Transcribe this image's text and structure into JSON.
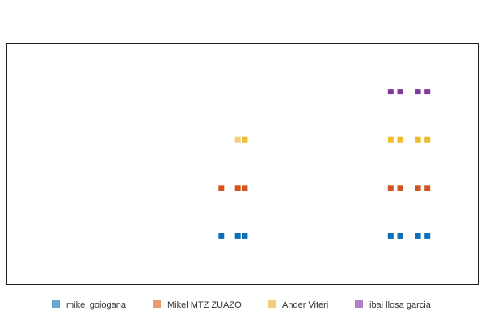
{
  "chart_data": {
    "type": "scatter",
    "title": "",
    "xlabel": "",
    "ylabel": "",
    "xlim": [
      0,
      1
    ],
    "ylim": [
      0,
      5
    ],
    "grid": false,
    "legend_position": "bottom",
    "series": [
      {
        "name": "mikel goiogana",
        "color": "#0b6fb8",
        "legend_color": "#6aa8d6",
        "points": [
          {
            "x": 0.455,
            "y": 1,
            "light": false
          },
          {
            "x": 0.49,
            "y": 1,
            "light": false
          },
          {
            "x": 0.505,
            "y": 1,
            "light": false
          },
          {
            "x": 0.815,
            "y": 1,
            "light": false
          },
          {
            "x": 0.835,
            "y": 1,
            "light": false
          },
          {
            "x": 0.873,
            "y": 1,
            "light": false
          },
          {
            "x": 0.893,
            "y": 1,
            "light": false
          }
        ]
      },
      {
        "name": "Mikel MTZ ZUAZO",
        "color": "#d4541f",
        "legend_color": "#e99a74",
        "points": [
          {
            "x": 0.455,
            "y": 2,
            "light": false
          },
          {
            "x": 0.49,
            "y": 2,
            "light": false
          },
          {
            "x": 0.505,
            "y": 2,
            "light": false
          },
          {
            "x": 0.815,
            "y": 2,
            "light": false
          },
          {
            "x": 0.835,
            "y": 2,
            "light": false
          },
          {
            "x": 0.873,
            "y": 2,
            "light": false
          },
          {
            "x": 0.893,
            "y": 2,
            "light": false
          }
        ]
      },
      {
        "name": "Ander Viteri",
        "color": "#f0bb2c",
        "legend_color": "#f5cc7a",
        "points": [
          {
            "x": 0.49,
            "y": 3,
            "light": true
          },
          {
            "x": 0.505,
            "y": 3,
            "light": false
          },
          {
            "x": 0.815,
            "y": 3,
            "light": false
          },
          {
            "x": 0.835,
            "y": 3,
            "light": false
          },
          {
            "x": 0.873,
            "y": 3,
            "light": false
          },
          {
            "x": 0.893,
            "y": 3,
            "light": false
          }
        ]
      },
      {
        "name": "ibai llosa garcia",
        "color": "#7f3a9a",
        "legend_color": "#b07fc3",
        "points": [
          {
            "x": 0.815,
            "y": 4,
            "light": false
          },
          {
            "x": 0.835,
            "y": 4,
            "light": false
          },
          {
            "x": 0.873,
            "y": 4,
            "light": false
          },
          {
            "x": 0.893,
            "y": 4,
            "light": false
          }
        ]
      }
    ]
  }
}
